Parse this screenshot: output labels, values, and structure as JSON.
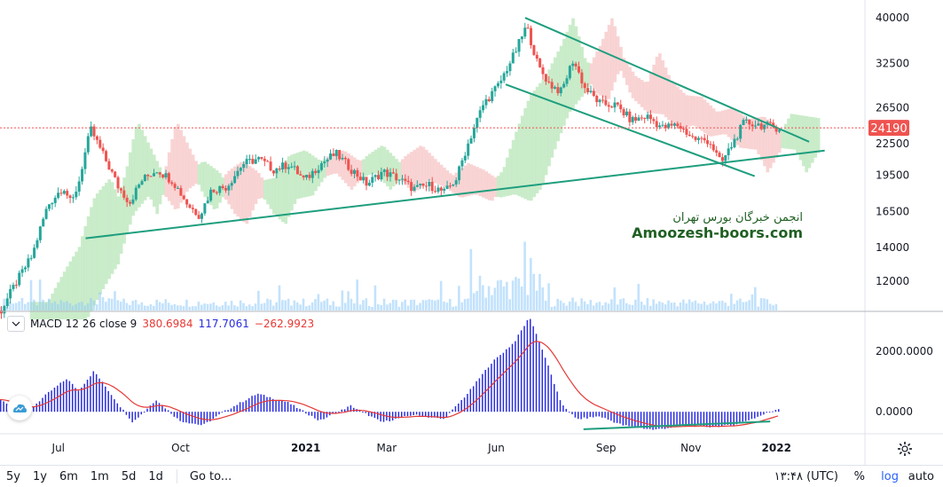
{
  "toolbar": {
    "ranges": [
      "5y",
      "1y",
      "6m",
      "1m",
      "5d",
      "1d"
    ],
    "goto_label": "Go to...",
    "time_label": "۱۳:۴۸ (UTC)",
    "percent_label": "%",
    "log_label": "log",
    "auto_label": "auto"
  },
  "watermark": {
    "persian": "انجمن خبرگان بورس تهران",
    "english": "Amoozesh-boors.com"
  },
  "macd_legend": {
    "name": "MACD 12 26 close 9",
    "value1": "380.6984",
    "value2": "117.7061",
    "value3": "−262.9923"
  },
  "colors": {
    "up": "#26a69a",
    "down": "#ef5350",
    "macd_hist": "#2a2ee0",
    "signal": "#e53935",
    "trendline": "#1e9e7e",
    "current_price_badge": "#ef5350",
    "cloud_green": "#b8e6b8",
    "cloud_red": "#f7c5c5",
    "volume": "#90caf9"
  },
  "chart_data": [
    {
      "type": "candlestick",
      "scale": "log",
      "y_ticks": [
        40000,
        32500,
        26500,
        22500,
        19500,
        16500,
        14000,
        12000
      ],
      "current_price": 24190,
      "x_ticks": [
        {
          "label": "Jul",
          "bold": false
        },
        {
          "label": "Oct",
          "bold": false
        },
        {
          "label": "2021",
          "bold": true
        },
        {
          "label": "Mar",
          "bold": false
        },
        {
          "label": "Jun",
          "bold": false
        },
        {
          "label": "Sep",
          "bold": false
        },
        {
          "label": "Nov",
          "bold": false
        },
        {
          "label": "2022",
          "bold": true
        }
      ],
      "price_path": [
        {
          "t": 0.0,
          "v": 10500
        },
        {
          "t": 0.02,
          "v": 12000
        },
        {
          "t": 0.04,
          "v": 13500
        },
        {
          "t": 0.06,
          "v": 17000
        },
        {
          "t": 0.08,
          "v": 18500
        },
        {
          "t": 0.09,
          "v": 17000
        },
        {
          "t": 0.1,
          "v": 19000
        },
        {
          "t": 0.115,
          "v": 24000
        },
        {
          "t": 0.13,
          "v": 21500
        },
        {
          "t": 0.15,
          "v": 18500
        },
        {
          "t": 0.165,
          "v": 17200
        },
        {
          "t": 0.18,
          "v": 19000
        },
        {
          "t": 0.2,
          "v": 20000
        },
        {
          "t": 0.22,
          "v": 19000
        },
        {
          "t": 0.24,
          "v": 17000
        },
        {
          "t": 0.255,
          "v": 16200
        },
        {
          "t": 0.27,
          "v": 18200
        },
        {
          "t": 0.29,
          "v": 18500
        },
        {
          "t": 0.31,
          "v": 20500
        },
        {
          "t": 0.33,
          "v": 21000
        },
        {
          "t": 0.35,
          "v": 20000
        },
        {
          "t": 0.37,
          "v": 20500
        },
        {
          "t": 0.39,
          "v": 19000
        },
        {
          "t": 0.41,
          "v": 20500
        },
        {
          "t": 0.43,
          "v": 21500
        },
        {
          "t": 0.45,
          "v": 20000
        },
        {
          "t": 0.47,
          "v": 18700
        },
        {
          "t": 0.49,
          "v": 19800
        },
        {
          "t": 0.51,
          "v": 19200
        },
        {
          "t": 0.53,
          "v": 18300
        },
        {
          "t": 0.55,
          "v": 18600
        },
        {
          "t": 0.57,
          "v": 18000
        },
        {
          "t": 0.585,
          "v": 19200
        },
        {
          "t": 0.6,
          "v": 22500
        },
        {
          "t": 0.62,
          "v": 27000
        },
        {
          "t": 0.64,
          "v": 29500
        },
        {
          "t": 0.66,
          "v": 34000
        },
        {
          "t": 0.675,
          "v": 38500
        },
        {
          "t": 0.69,
          "v": 32000
        },
        {
          "t": 0.705,
          "v": 29500
        },
        {
          "t": 0.72,
          "v": 28500
        },
        {
          "t": 0.735,
          "v": 33000
        },
        {
          "t": 0.75,
          "v": 29000
        },
        {
          "t": 0.77,
          "v": 27000
        },
        {
          "t": 0.79,
          "v": 26800
        },
        {
          "t": 0.81,
          "v": 25000
        },
        {
          "t": 0.83,
          "v": 25500
        },
        {
          "t": 0.85,
          "v": 24200
        },
        {
          "t": 0.87,
          "v": 24500
        },
        {
          "t": 0.89,
          "v": 23000
        },
        {
          "t": 0.91,
          "v": 22800
        },
        {
          "t": 0.925,
          "v": 20500
        },
        {
          "t": 0.94,
          "v": 22500
        },
        {
          "t": 0.955,
          "v": 24800
        },
        {
          "t": 1.0,
          "v": 24190
        }
      ],
      "trendlines": [
        {
          "p1": {
            "t": 0.11,
            "v": 14600
          },
          "p2": {
            "t": 1.06,
            "v": 21800
          }
        },
        {
          "p1": {
            "t": 0.675,
            "v": 40000
          },
          "p2": {
            "t": 1.04,
            "v": 22700
          }
        },
        {
          "p1": {
            "t": 0.65,
            "v": 29500
          },
          "p2": {
            "t": 0.97,
            "v": 19400
          }
        }
      ]
    },
    {
      "type": "bar",
      "name": "MACD 12 26 close 9",
      "y_ticks": [
        2000,
        0
      ],
      "y_tick_labels": [
        "2000.0000",
        "0.0000"
      ],
      "ylim": [
        -700,
        3300
      ],
      "macd_path": [
        {
          "t": 0.0,
          "v": 400
        },
        {
          "t": 0.03,
          "v": -100
        },
        {
          "t": 0.06,
          "v": 600
        },
        {
          "t": 0.085,
          "v": 1100
        },
        {
          "t": 0.1,
          "v": 700
        },
        {
          "t": 0.12,
          "v": 1350
        },
        {
          "t": 0.15,
          "v": 300
        },
        {
          "t": 0.17,
          "v": -350
        },
        {
          "t": 0.2,
          "v": 400
        },
        {
          "t": 0.23,
          "v": -300
        },
        {
          "t": 0.26,
          "v": -450
        },
        {
          "t": 0.29,
          "v": 50
        },
        {
          "t": 0.33,
          "v": 600
        },
        {
          "t": 0.37,
          "v": 300
        },
        {
          "t": 0.41,
          "v": -300
        },
        {
          "t": 0.45,
          "v": 200
        },
        {
          "t": 0.49,
          "v": -350
        },
        {
          "t": 0.53,
          "v": -100
        },
        {
          "t": 0.57,
          "v": -250
        },
        {
          "t": 0.6,
          "v": 600
        },
        {
          "t": 0.63,
          "v": 1600
        },
        {
          "t": 0.66,
          "v": 2300
        },
        {
          "t": 0.68,
          "v": 3150
        },
        {
          "t": 0.7,
          "v": 1800
        },
        {
          "t": 0.72,
          "v": 300
        },
        {
          "t": 0.74,
          "v": -250
        },
        {
          "t": 0.77,
          "v": -150
        },
        {
          "t": 0.8,
          "v": -450
        },
        {
          "t": 0.84,
          "v": -600
        },
        {
          "t": 0.88,
          "v": -450
        },
        {
          "t": 0.91,
          "v": -500
        },
        {
          "t": 0.94,
          "v": -450
        },
        {
          "t": 0.97,
          "v": -200
        },
        {
          "t": 1.0,
          "v": 110
        }
      ],
      "trendline": {
        "p1": {
          "t": 0.75,
          "v": -580
        },
        "p2": {
          "t": 0.99,
          "v": -320
        }
      }
    }
  ]
}
